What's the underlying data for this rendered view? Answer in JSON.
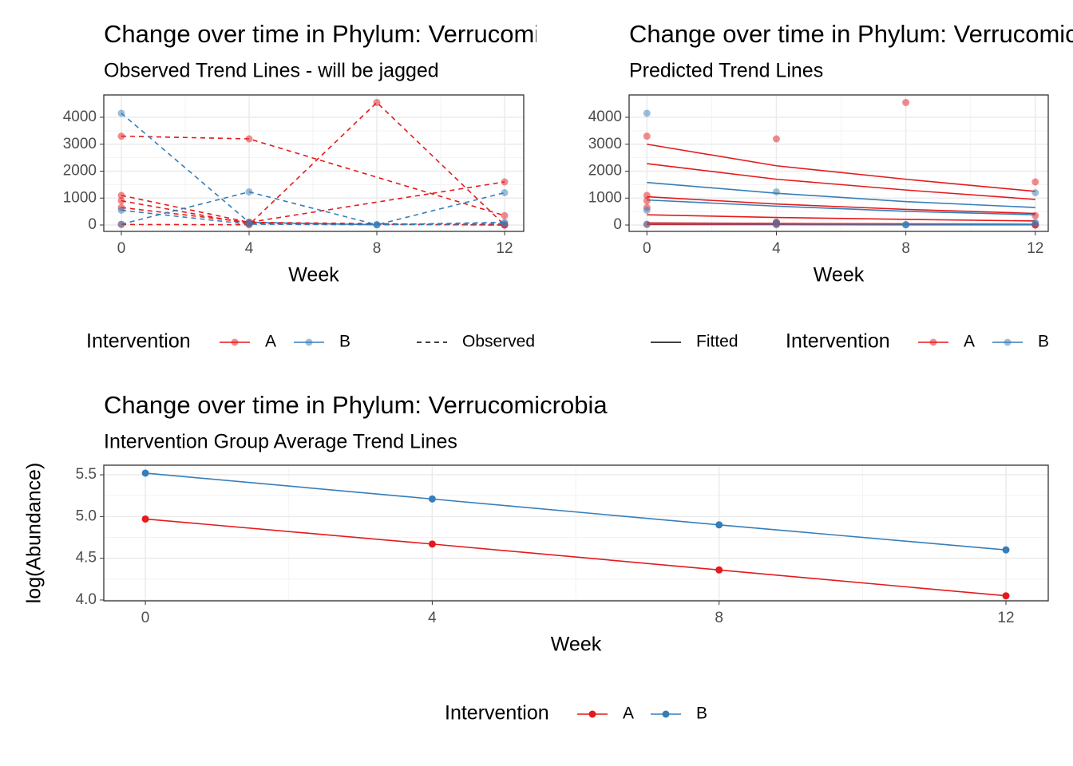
{
  "chart_data": [
    {
      "type": "line",
      "title": "Change over time in Phylum: Verrucomicrobia",
      "subtitle": "Observed Trend Lines - will be jagged",
      "x_label": "Week",
      "xlim": [
        -0.55,
        12.6
      ],
      "xticks": [
        0,
        4,
        8,
        12
      ],
      "ylim": [
        -237,
        4830
      ],
      "yticks": [
        0,
        1000,
        2000,
        3000,
        4000
      ],
      "grid": true,
      "minor_grid": true,
      "linestyle": "dashed",
      "markers": true,
      "marker_alpha": 0.5,
      "legend_title": "Intervention",
      "linetype_legend": "Observed",
      "groups": [
        {
          "name": "A",
          "color": "#e41a1c"
        },
        {
          "name": "B",
          "color": "#377eb8"
        }
      ],
      "series": [
        {
          "group": "A",
          "x": [
            0,
            4,
            12
          ],
          "values": [
            3300,
            3200,
            350
          ]
        },
        {
          "group": "A",
          "x": [
            0,
            4,
            8,
            12
          ],
          "values": [
            20,
            10,
            4550,
            0
          ]
        },
        {
          "group": "A",
          "x": [
            0,
            4,
            12
          ],
          "values": [
            1100,
            100,
            1600
          ]
        },
        {
          "group": "A",
          "x": [
            0,
            4,
            12
          ],
          "values": [
            900,
            50,
            0
          ]
        },
        {
          "group": "A",
          "x": [
            0,
            4,
            12
          ],
          "values": [
            650,
            100,
            0
          ]
        },
        {
          "group": "B",
          "x": [
            0,
            4,
            8,
            12
          ],
          "values": [
            4150,
            100,
            10,
            1200
          ]
        },
        {
          "group": "B",
          "x": [
            0,
            4,
            8,
            12
          ],
          "values": [
            30,
            1230,
            10,
            100
          ]
        },
        {
          "group": "B",
          "x": [
            0,
            4,
            8,
            12
          ],
          "values": [
            550,
            30,
            10,
            50
          ]
        }
      ]
    },
    {
      "type": "line",
      "title": "Change over time in Phylum: Verrucomicrobia",
      "subtitle": "Predicted Trend Lines",
      "x_label": "Week",
      "xlim": [
        -0.55,
        12.4
      ],
      "xticks": [
        0,
        4,
        8,
        12
      ],
      "ylim": [
        -237,
        4830
      ],
      "yticks": [
        0,
        1000,
        2000,
        3000,
        4000
      ],
      "grid": true,
      "minor_grid": true,
      "linestyle": "solid",
      "markers": false,
      "marker_alpha": 0.5,
      "legend_title": "Intervention",
      "linetype_legend": "Fitted",
      "groups": [
        {
          "name": "A",
          "color": "#e41a1c"
        },
        {
          "name": "B",
          "color": "#377eb8"
        }
      ],
      "x": [
        0,
        4,
        8,
        12
      ],
      "series": [
        {
          "group": "A",
          "values": [
            3000,
            2200,
            1700,
            1250
          ]
        },
        {
          "group": "A",
          "values": [
            2280,
            1700,
            1300,
            950
          ]
        },
        {
          "group": "A",
          "values": [
            1050,
            780,
            580,
            430
          ]
        },
        {
          "group": "A",
          "values": [
            380,
            280,
            210,
            150
          ]
        },
        {
          "group": "A",
          "values": [
            80,
            60,
            45,
            30
          ]
        },
        {
          "group": "A",
          "values": [
            20,
            15,
            10,
            8
          ]
        },
        {
          "group": "B",
          "values": [
            1580,
            1180,
            870,
            650
          ]
        },
        {
          "group": "B",
          "values": [
            930,
            700,
            510,
            380
          ]
        },
        {
          "group": "B",
          "values": [
            50,
            40,
            30,
            20
          ]
        }
      ],
      "points": [
        {
          "group": "A",
          "x": [
            0,
            4,
            12
          ],
          "values": [
            3300,
            3200,
            350
          ]
        },
        {
          "group": "A",
          "x": [
            0,
            4,
            8,
            12
          ],
          "values": [
            20,
            10,
            4550,
            0
          ]
        },
        {
          "group": "A",
          "x": [
            0,
            4,
            12
          ],
          "values": [
            1100,
            100,
            1600
          ]
        },
        {
          "group": "A",
          "x": [
            0,
            4,
            12
          ],
          "values": [
            900,
            50,
            0
          ]
        },
        {
          "group": "A",
          "x": [
            0,
            4,
            12
          ],
          "values": [
            650,
            100,
            0
          ]
        },
        {
          "group": "B",
          "x": [
            0,
            4,
            8,
            12
          ],
          "values": [
            4150,
            100,
            10,
            1200
          ]
        },
        {
          "group": "B",
          "x": [
            0,
            4,
            8,
            12
          ],
          "values": [
            30,
            1230,
            10,
            100
          ]
        },
        {
          "group": "B",
          "x": [
            0,
            4,
            8,
            12
          ],
          "values": [
            550,
            30,
            10,
            50
          ]
        }
      ]
    },
    {
      "type": "line",
      "title": "Change over time in Phylum: Verrucomicrobia",
      "subtitle": "Intervention Group Average Trend Lines",
      "x_label": "Week",
      "y_label": "log(Abundance)",
      "xlim": [
        -0.58,
        12.59
      ],
      "xticks": [
        0,
        4,
        8,
        12
      ],
      "ylim": [
        3.99,
        5.615
      ],
      "yticks": [
        {
          "value": 4,
          "label": "4.0"
        },
        {
          "value": 4.5,
          "label": "4.5"
        },
        {
          "value": 5,
          "label": "5.0"
        },
        {
          "value": 5.5,
          "label": "5.5"
        }
      ],
      "grid": true,
      "minor_grid": true,
      "linestyle": "solid",
      "markers": true,
      "marker_alpha": 1,
      "legend_title": "Intervention",
      "x": [
        0,
        4,
        8,
        12
      ],
      "series": [
        {
          "name": "A",
          "color": "#e41a1c",
          "values": [
            4.97,
            4.67,
            4.36,
            4.05
          ]
        },
        {
          "name": "B",
          "color": "#377eb8",
          "values": [
            5.52,
            5.21,
            4.9,
            4.6
          ]
        }
      ]
    }
  ]
}
